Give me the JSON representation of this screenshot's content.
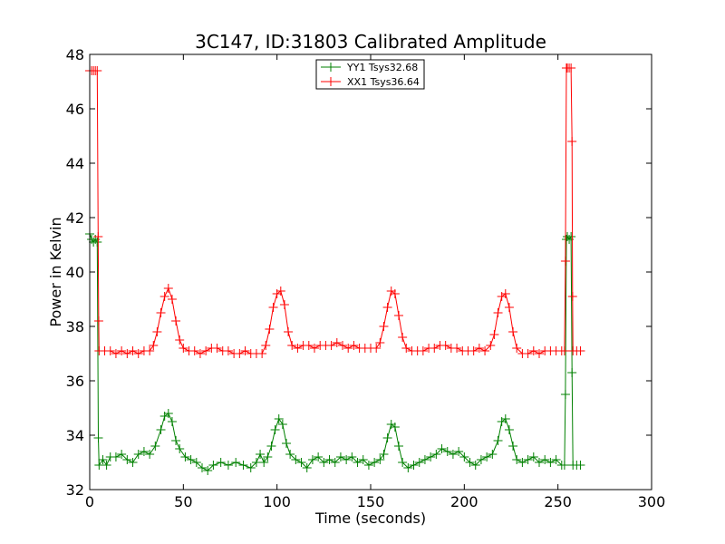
{
  "chart_data": {
    "type": "line",
    "title": "3C147, ID:31803 Calibrated Amplitude",
    "xlabel": "Time (seconds)",
    "ylabel": "Power in Kelvin",
    "xlim": [
      0,
      300
    ],
    "ylim": [
      32,
      48
    ],
    "xticks": [
      0,
      50,
      100,
      150,
      200,
      250,
      300
    ],
    "yticks": [
      32,
      34,
      36,
      38,
      40,
      42,
      44,
      46,
      48
    ],
    "grid": false,
    "legend_position": "top-center",
    "marker": "+",
    "series": [
      {
        "name": "YY1 Tsys32.68",
        "color": "#008000",
        "points": [
          [
            0,
            41.4
          ],
          [
            1,
            41.2
          ],
          [
            2,
            41.1
          ],
          [
            3,
            41.2
          ],
          [
            4,
            41.1
          ],
          [
            4.6,
            33.9
          ],
          [
            5,
            32.9
          ],
          [
            7,
            33.1
          ],
          [
            9,
            32.9
          ],
          [
            11,
            33.2
          ],
          [
            14,
            33.2
          ],
          [
            17,
            33.3
          ],
          [
            20,
            33.1
          ],
          [
            23,
            33.0
          ],
          [
            26,
            33.3
          ],
          [
            29,
            33.4
          ],
          [
            32,
            33.3
          ],
          [
            35,
            33.6
          ],
          [
            38,
            34.2
          ],
          [
            40,
            34.7
          ],
          [
            42,
            34.8
          ],
          [
            44,
            34.5
          ],
          [
            46,
            33.8
          ],
          [
            48,
            33.5
          ],
          [
            51,
            33.2
          ],
          [
            54,
            33.1
          ],
          [
            57,
            33.0
          ],
          [
            60,
            32.8
          ],
          [
            63,
            32.7
          ],
          [
            66,
            32.9
          ],
          [
            70,
            33.0
          ],
          [
            74,
            32.9
          ],
          [
            78,
            33.0
          ],
          [
            82,
            32.9
          ],
          [
            86,
            32.8
          ],
          [
            89,
            33.0
          ],
          [
            91,
            33.3
          ],
          [
            93,
            33.0
          ],
          [
            95,
            33.2
          ],
          [
            97,
            33.6
          ],
          [
            99,
            34.2
          ],
          [
            101,
            34.6
          ],
          [
            103,
            34.4
          ],
          [
            105,
            33.7
          ],
          [
            107,
            33.3
          ],
          [
            110,
            33.1
          ],
          [
            113,
            33.0
          ],
          [
            116,
            32.8
          ],
          [
            119,
            33.1
          ],
          [
            122,
            33.2
          ],
          [
            125,
            33.0
          ],
          [
            128,
            33.1
          ],
          [
            131,
            33.0
          ],
          [
            134,
            33.2
          ],
          [
            137,
            33.1
          ],
          [
            140,
            33.2
          ],
          [
            143,
            33.0
          ],
          [
            146,
            33.1
          ],
          [
            149,
            32.9
          ],
          [
            152,
            33.0
          ],
          [
            155,
            33.1
          ],
          [
            157,
            33.3
          ],
          [
            159,
            33.9
          ],
          [
            161,
            34.4
          ],
          [
            163,
            34.3
          ],
          [
            165,
            33.6
          ],
          [
            167,
            33.0
          ],
          [
            170,
            32.8
          ],
          [
            173,
            32.9
          ],
          [
            176,
            33.0
          ],
          [
            179,
            33.1
          ],
          [
            182,
            33.2
          ],
          [
            185,
            33.3
          ],
          [
            188,
            33.5
          ],
          [
            191,
            33.4
          ],
          [
            194,
            33.3
          ],
          [
            197,
            33.4
          ],
          [
            200,
            33.2
          ],
          [
            203,
            33.0
          ],
          [
            206,
            32.9
          ],
          [
            209,
            33.1
          ],
          [
            212,
            33.2
          ],
          [
            215,
            33.3
          ],
          [
            218,
            33.8
          ],
          [
            220,
            34.5
          ],
          [
            222,
            34.6
          ],
          [
            224,
            34.2
          ],
          [
            226,
            33.6
          ],
          [
            228,
            33.1
          ],
          [
            231,
            33.0
          ],
          [
            234,
            33.1
          ],
          [
            237,
            33.2
          ],
          [
            240,
            33.0
          ],
          [
            243,
            33.1
          ],
          [
            246,
            33.0
          ],
          [
            249,
            33.1
          ],
          [
            252,
            32.9
          ],
          [
            253.5,
            32.9
          ],
          [
            254,
            35.5
          ],
          [
            254.5,
            41.2
          ],
          [
            255,
            41.3
          ],
          [
            256,
            41.2
          ],
          [
            257,
            41.3
          ],
          [
            257.5,
            36.3
          ],
          [
            258,
            32.9
          ],
          [
            260,
            32.9
          ],
          [
            262,
            32.9
          ]
        ]
      },
      {
        "name": "XX1 Tsys36.64",
        "color": "#ff0000",
        "points": [
          [
            0,
            47.4
          ],
          [
            1,
            47.4
          ],
          [
            2,
            47.4
          ],
          [
            3,
            47.4
          ],
          [
            4,
            47.4
          ],
          [
            4.5,
            41.3
          ],
          [
            4.8,
            38.2
          ],
          [
            5,
            37.1
          ],
          [
            8,
            37.1
          ],
          [
            11,
            37.1
          ],
          [
            14,
            37.0
          ],
          [
            17,
            37.1
          ],
          [
            20,
            37.0
          ],
          [
            23,
            37.1
          ],
          [
            26,
            37.0
          ],
          [
            29,
            37.1
          ],
          [
            32,
            37.1
          ],
          [
            34,
            37.3
          ],
          [
            36,
            37.8
          ],
          [
            38,
            38.5
          ],
          [
            40,
            39.1
          ],
          [
            42,
            39.4
          ],
          [
            44,
            39.0
          ],
          [
            46,
            38.2
          ],
          [
            48,
            37.5
          ],
          [
            50,
            37.2
          ],
          [
            53,
            37.1
          ],
          [
            56,
            37.1
          ],
          [
            59,
            37.0
          ],
          [
            62,
            37.1
          ],
          [
            65,
            37.2
          ],
          [
            68,
            37.2
          ],
          [
            71,
            37.1
          ],
          [
            74,
            37.1
          ],
          [
            77,
            37.0
          ],
          [
            80,
            37.0
          ],
          [
            83,
            37.1
          ],
          [
            86,
            37.0
          ],
          [
            89,
            37.0
          ],
          [
            92,
            37.0
          ],
          [
            94,
            37.3
          ],
          [
            96,
            37.9
          ],
          [
            98,
            38.7
          ],
          [
            100,
            39.2
          ],
          [
            102,
            39.3
          ],
          [
            104,
            38.8
          ],
          [
            106,
            37.8
          ],
          [
            108,
            37.3
          ],
          [
            111,
            37.2
          ],
          [
            114,
            37.3
          ],
          [
            117,
            37.3
          ],
          [
            120,
            37.2
          ],
          [
            123,
            37.3
          ],
          [
            126,
            37.3
          ],
          [
            129,
            37.3
          ],
          [
            132,
            37.4
          ],
          [
            135,
            37.3
          ],
          [
            138,
            37.2
          ],
          [
            141,
            37.3
          ],
          [
            144,
            37.2
          ],
          [
            147,
            37.2
          ],
          [
            150,
            37.2
          ],
          [
            153,
            37.2
          ],
          [
            155,
            37.4
          ],
          [
            157,
            38.0
          ],
          [
            159,
            38.7
          ],
          [
            161,
            39.3
          ],
          [
            163,
            39.2
          ],
          [
            165,
            38.4
          ],
          [
            167,
            37.6
          ],
          [
            169,
            37.2
          ],
          [
            172,
            37.1
          ],
          [
            175,
            37.1
          ],
          [
            178,
            37.1
          ],
          [
            181,
            37.2
          ],
          [
            184,
            37.2
          ],
          [
            187,
            37.3
          ],
          [
            190,
            37.3
          ],
          [
            193,
            37.2
          ],
          [
            196,
            37.2
          ],
          [
            199,
            37.1
          ],
          [
            202,
            37.1
          ],
          [
            205,
            37.1
          ],
          [
            208,
            37.2
          ],
          [
            211,
            37.1
          ],
          [
            214,
            37.3
          ],
          [
            216,
            37.7
          ],
          [
            218,
            38.5
          ],
          [
            220,
            39.1
          ],
          [
            222,
            39.2
          ],
          [
            224,
            38.7
          ],
          [
            226,
            37.8
          ],
          [
            228,
            37.2
          ],
          [
            231,
            37.0
          ],
          [
            234,
            37.0
          ],
          [
            237,
            37.1
          ],
          [
            240,
            37.0
          ],
          [
            243,
            37.1
          ],
          [
            246,
            37.1
          ],
          [
            249,
            37.1
          ],
          [
            252,
            37.1
          ],
          [
            253.5,
            37.1
          ],
          [
            254,
            40.4
          ],
          [
            254.5,
            47.5
          ],
          [
            255,
            47.5
          ],
          [
            256,
            47.5
          ],
          [
            257,
            47.5
          ],
          [
            257.5,
            44.8
          ],
          [
            257.8,
            39.1
          ],
          [
            258,
            37.1
          ],
          [
            260,
            37.1
          ],
          [
            262,
            37.1
          ]
        ]
      }
    ]
  }
}
